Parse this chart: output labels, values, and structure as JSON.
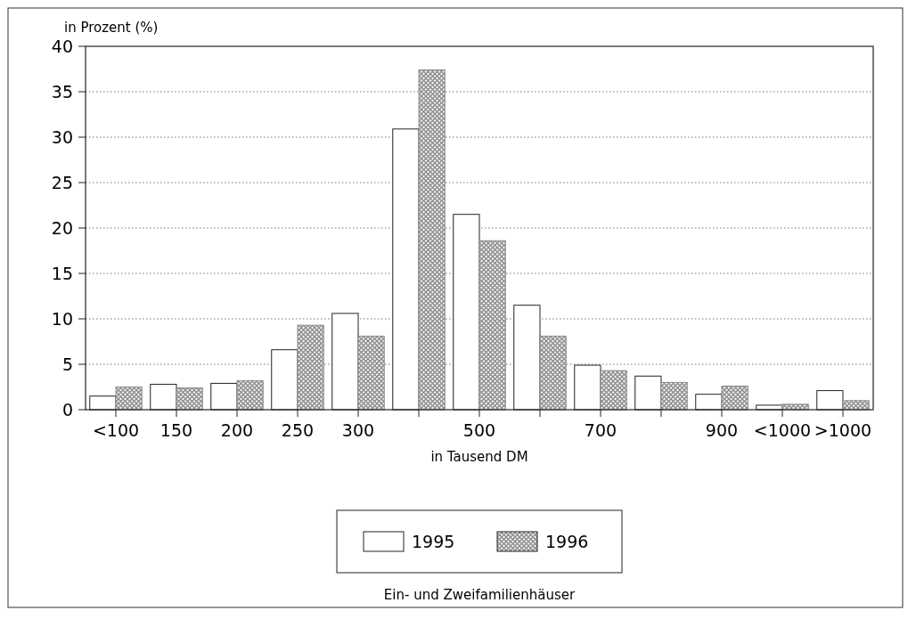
{
  "chart_data": {
    "type": "bar",
    "title": "Ein- und Zweifamilienhäuser",
    "xlabel": "in Tausend DM",
    "ylabel": "in Prozent (%)",
    "categories": [
      "<100",
      "150",
      "200",
      "250",
      "300",
      null,
      "500",
      null,
      "700",
      null,
      "900",
      "<1000",
      ">1000"
    ],
    "series": [
      {
        "name": "1995",
        "color": "#ffffff",
        "values": [
          1.5,
          2.8,
          2.9,
          6.6,
          10.6,
          30.9,
          21.5,
          11.5,
          4.9,
          3.7,
          1.7,
          0.5,
          2.1
        ]
      },
      {
        "name": "1996",
        "color": "#8c8c8c",
        "values": [
          2.5,
          2.4,
          3.2,
          9.3,
          8.1,
          37.4,
          18.6,
          8.1,
          4.3,
          3.0,
          2.6,
          0.6,
          1.0
        ]
      }
    ],
    "ylim": [
      0,
      40
    ],
    "yticks": [
      0,
      5,
      10,
      15,
      20,
      25,
      30,
      35,
      40
    ],
    "grid": "y",
    "legend": "bottom"
  }
}
